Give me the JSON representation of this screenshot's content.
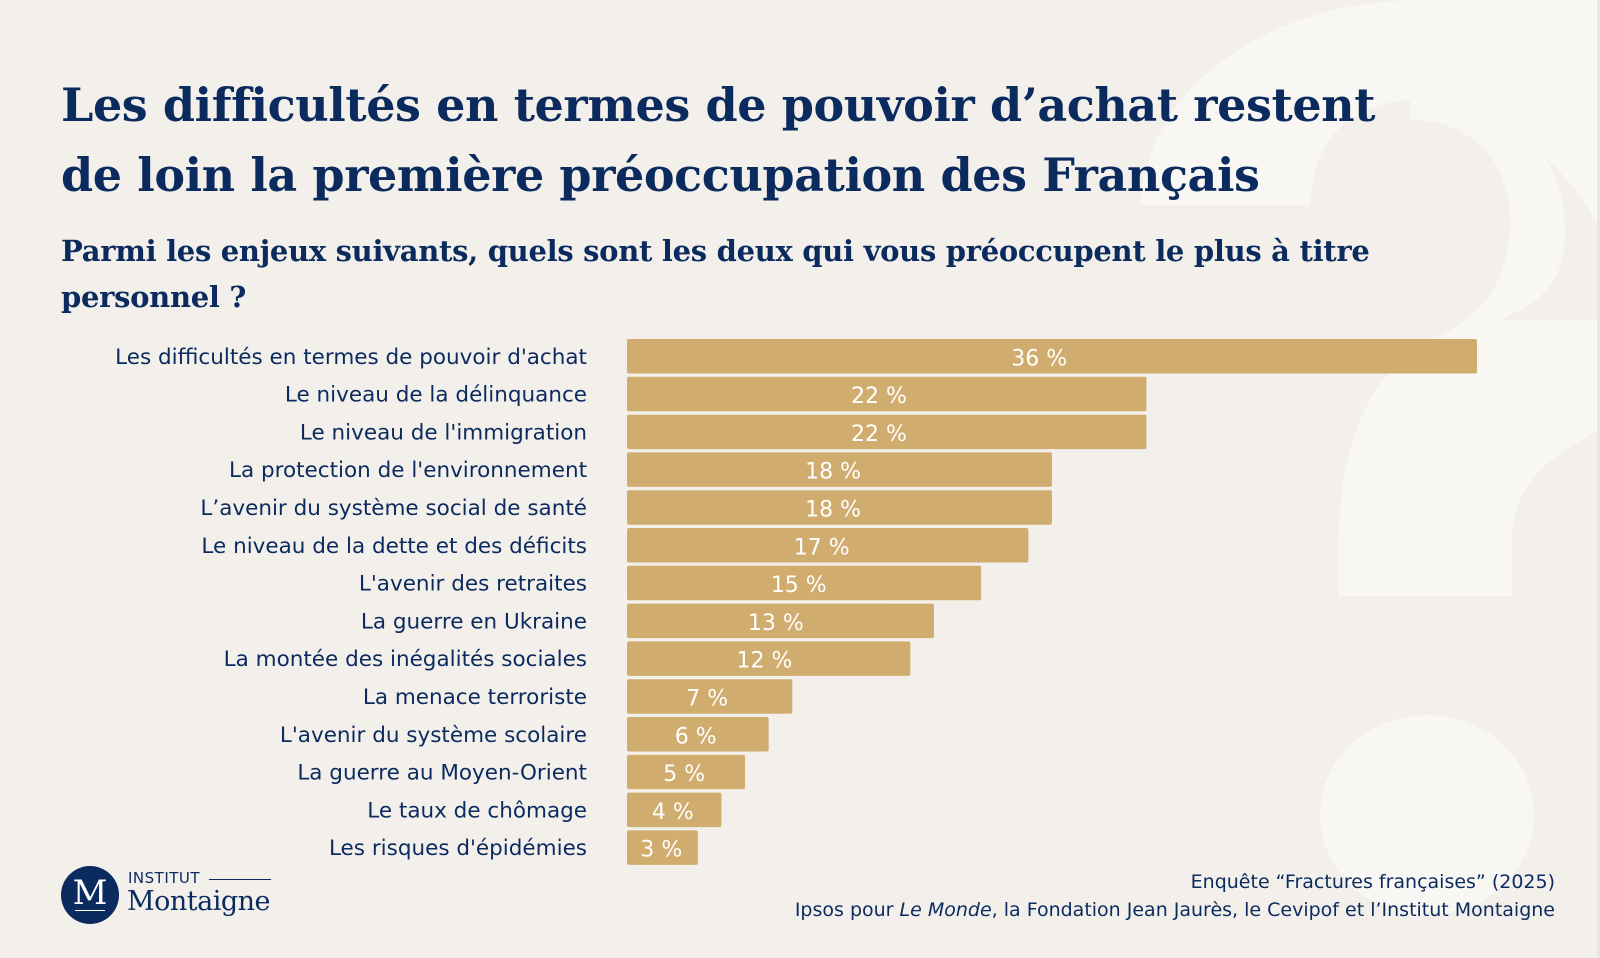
{
  "header": {
    "title_line1": "Les difficultés en termes de pouvoir d’achat restent",
    "title_line2": "de loin la première préoccupation des Français",
    "question_line1": "Parmi les enjeux suivants, quels sont les deux qui vous préoccupent le plus à titre",
    "question_line2": "personnel ?"
  },
  "colors": {
    "background": "#f3f0ec",
    "watermark": "#f8f7f4",
    "bar": "#d0ad6f",
    "text": "#0b2a5e",
    "bar_label": "#ffffff"
  },
  "background_icon": "question-mark-icon",
  "chart_data": {
    "type": "bar",
    "orientation": "horizontal",
    "title": "Les difficultés en termes de pouvoir d’achat restent de loin la première préoccupation des Français",
    "subtitle": "Parmi les enjeux suivants, quels sont les deux qui vous préoccupent le plus à titre personnel ?",
    "xlabel": "",
    "ylabel": "",
    "unit": "%",
    "xlim": [
      0,
      36
    ],
    "grid": false,
    "legend": "none",
    "categories": [
      "Les difficultés en termes de pouvoir d'achat",
      "Le niveau de la délinquance",
      "Le niveau de l'immigration",
      "La protection de l'environnement",
      "L’avenir du système social de santé",
      "Le niveau de la dette et des déficits",
      "L'avenir des retraites",
      "La guerre en Ukraine",
      "La montée des inégalités sociales",
      "La menace terroriste",
      "L'avenir du système scolaire",
      "La guerre au Moyen-Orient",
      "Le taux de chômage",
      "Les risques d'épidémies"
    ],
    "values": [
      36,
      22,
      22,
      18,
      18,
      17,
      15,
      13,
      12,
      7,
      6,
      5,
      4,
      3
    ],
    "value_labels": [
      "36 %",
      "22 %",
      "22 %",
      "18 %",
      "18 %",
      "17 %",
      "15 %",
      "13 %",
      "12 %",
      "7 %",
      "6 %",
      "5 %",
      "4 %",
      "3 %"
    ]
  },
  "logo": {
    "monogram": "M",
    "line1": "INSTITUT",
    "line2": "Montaigne"
  },
  "source": {
    "line1": "Enquête “Fractures françaises” (2025)",
    "line2_prefix": "Ipsos pour ",
    "line2_italic": "Le Monde",
    "line2_suffix": ", la Fondation Jean Jaurès, le Cevipof et l’Institut Montaigne"
  }
}
